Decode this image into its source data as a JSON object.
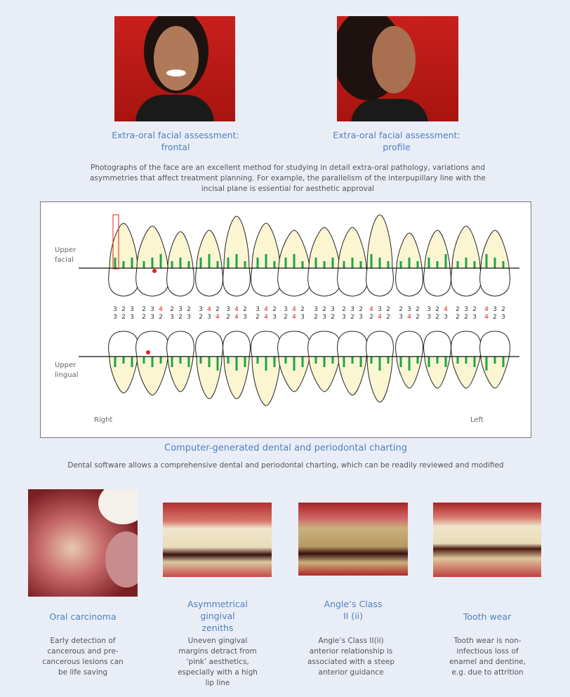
{
  "top_photos": [
    {
      "caption_line1": "Extra-oral facial assessment:",
      "caption_line2": "frontal"
    },
    {
      "caption_line1": "Extra-oral facial assessment:",
      "caption_line2": "profile"
    }
  ],
  "intro_text": "Photographs of the face are an excellent method for studying in detail extra-oral pathology, variations and asymmetries that affect treatment planning. For example, the parallelism of the interpupillary line with the incisal plane is essential for aesthetic approval",
  "chart": {
    "label_upper_facial": "Upper facial",
    "label_upper_lingual": "Upper lingual",
    "label_right": "Right",
    "label_left": "Left",
    "colors": {
      "root": "#fbf5d2",
      "pocket_bar": "#1aa64a",
      "alert": "#e02020",
      "text": "#333333"
    },
    "teeth_facial_depths": [
      "323",
      "234",
      "232",
      "342",
      "342",
      "342",
      "342",
      "323",
      "232",
      "432",
      "232",
      "324",
      "232",
      "432"
    ],
    "teeth_lingual_depths": [
      "323",
      "232",
      "323",
      "234",
      "243",
      "243",
      "243",
      "232",
      "323",
      "242",
      "342",
      "323",
      "223",
      "423"
    ],
    "alert_threshold": 4
  },
  "chart_caption": "Computer-generated dental and periodontal charting",
  "chart_text": "Dental software allows a comprehensive dental and periodontal charting, which can be readily reviewed and modified",
  "cases": [
    {
      "title": "Oral carcinoma",
      "text": "Early detection of cancerous and pre-cancerous lesions can be life saving"
    },
    {
      "title": "Asymmetrical gingival zeniths",
      "text": "Uneven gingival margins detract from ‘pink’ aesthetics, especially with a high lip line"
    },
    {
      "title": "Angle’s Class II (ii)",
      "text": "Angle’s Class II(ii) anterior relationship is associated with a steep anterior guidance"
    },
    {
      "title": "Tooth wear",
      "text": "Tooth wear is non-infectious loss of enamel and dentine, e.g. due to attrition"
    }
  ]
}
